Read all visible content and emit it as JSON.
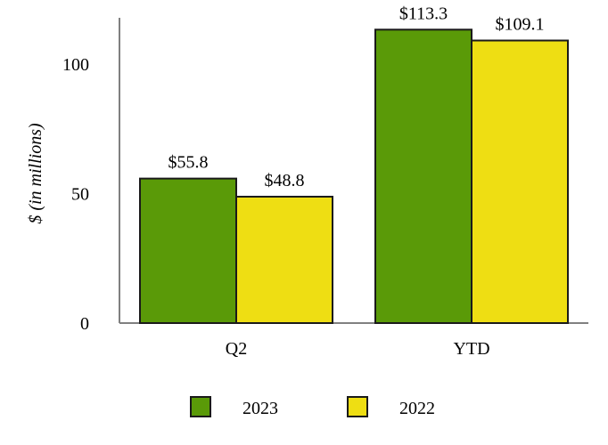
{
  "chart_data": {
    "type": "bar",
    "ylabel": "$ (in millions)",
    "xlabel": "",
    "categories": [
      "Q2",
      "YTD"
    ],
    "ylim": [
      0,
      120
    ],
    "yticks": [
      0,
      50,
      100
    ],
    "grid": false,
    "legend_position": "bottom",
    "series": [
      {
        "name": "2023",
        "color": "#5a9a08",
        "values": [
          55.8,
          113.3
        ],
        "labels": [
          "$55.8",
          "$113.3"
        ]
      },
      {
        "name": "2022",
        "color": "#eede13",
        "values": [
          48.8,
          109.1
        ],
        "labels": [
          "$48.8",
          "$109.1"
        ]
      }
    ]
  }
}
